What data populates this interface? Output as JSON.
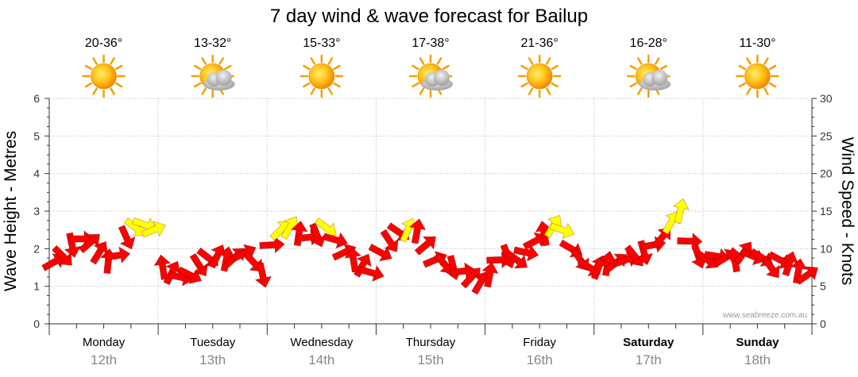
{
  "chart_data": {
    "type": "line",
    "title": "7 day wind & wave forecast for Bailup",
    "ylabel_left": "Wave Height - Metres",
    "ylabel_right": "Wind Speed - Knots",
    "ylim_left": [
      0,
      6
    ],
    "ylim_right": [
      0,
      30
    ],
    "yticks_left": [
      "0",
      "1",
      "2",
      "3",
      "4",
      "5",
      "6"
    ],
    "yticks_right": [
      "0",
      "5",
      "10",
      "15",
      "20",
      "25",
      "30"
    ],
    "grid": true,
    "credit": "www.seabreeze.com.au",
    "days": [
      {
        "name": "Monday",
        "date": "12th",
        "temp": "20-36°",
        "icon": "sun-icon",
        "bold": false
      },
      {
        "name": "Tuesday",
        "date": "13th",
        "temp": "13-32°",
        "icon": "sun-cloud-icon",
        "bold": false
      },
      {
        "name": "Wednesday",
        "date": "14th",
        "temp": "15-33°",
        "icon": "sun-icon",
        "bold": false
      },
      {
        "name": "Thursday",
        "date": "15th",
        "temp": "17-38°",
        "icon": "sun-cloud-icon",
        "bold": false
      },
      {
        "name": "Friday",
        "date": "16th",
        "temp": "21-36°",
        "icon": "sun-icon",
        "bold": false
      },
      {
        "name": "Saturday",
        "date": "17th",
        "temp": "16-28°",
        "icon": "sun-cloud-icon",
        "bold": true
      },
      {
        "name": "Sunday",
        "date": "18th",
        "temp": "11-30°",
        "icon": "sun-icon",
        "bold": true
      }
    ],
    "wind_colors": {
      "strong": "#ff0000",
      "light": "#ffff00"
    },
    "wind_series": [
      {
        "day": 0,
        "knots": [
          8.2,
          9.0,
          10.5,
          11.3,
          10.8,
          9.5,
          8.3,
          9.1,
          11.5,
          12.8,
          13.2,
          12.5
        ]
      },
      {
        "day": 1,
        "knots": [
          7.5,
          6.8,
          6.2,
          6.5,
          7.8,
          8.8,
          9.0,
          8.6,
          8.9,
          9.4,
          8.2,
          6.5
        ]
      },
      {
        "day": 2,
        "knots": [
          10.5,
          12.5,
          12.8,
          12.0,
          11.5,
          11.8,
          12.8,
          11.2,
          9.5,
          8.5,
          7.8,
          6.8
        ]
      },
      {
        "day": 3,
        "knots": [
          9.5,
          11.0,
          12.2,
          12.5,
          12.3,
          10.5,
          8.5,
          8.0,
          7.5,
          7.0,
          6.2,
          5.5
        ]
      },
      {
        "day": 4,
        "knots": [
          6.5,
          8.5,
          9.0,
          8.5,
          9.5,
          11.0,
          12.0,
          13.0,
          12.5,
          10.0,
          8.5,
          7.5
        ]
      },
      {
        "day": 5,
        "knots": [
          7.5,
          8.0,
          8.2,
          8.5,
          9.0,
          9.5,
          10.5,
          11.5,
          13.5,
          15.0,
          11.0,
          9.0
        ]
      },
      {
        "day": 6,
        "knots": [
          8.5,
          9.0,
          8.8,
          8.5,
          9.5,
          9.0,
          8.8,
          7.5,
          8.5,
          8.0,
          7.0,
          6.5
        ]
      }
    ]
  }
}
